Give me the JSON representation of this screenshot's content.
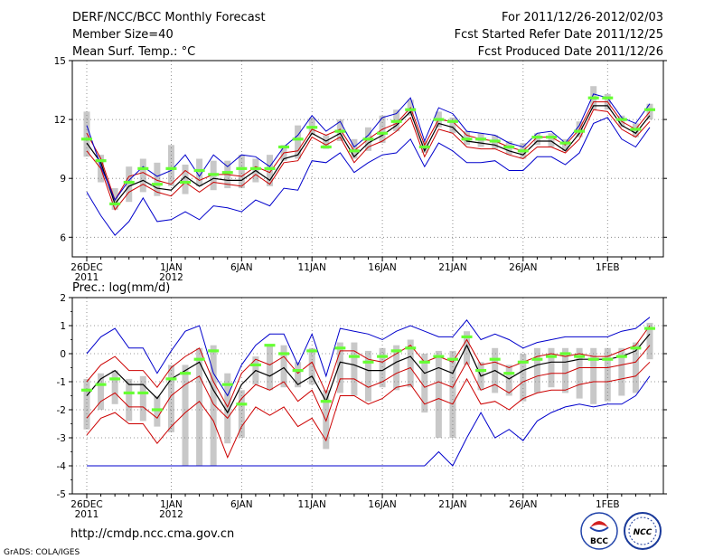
{
  "header": {
    "left": [
      "DERF/NCC/BCC Monthly Forecast",
      "Member Size=40",
      "Mean Surf. Temp.: °C"
    ],
    "right": [
      "For 2011/12/26-2012/02/03",
      "Fcst Started Refer Date 2011/12/25",
      "Fcst Produced Date 2011/12/26"
    ]
  },
  "footer": {
    "url": "http://cmdp.ncc.cma.gov.cn",
    "credit": "GrADS: COLA/IGES",
    "logo_left": "BCC",
    "logo_right": "NCC"
  },
  "colors": {
    "max_min": "#0000cc",
    "mean": "#000000",
    "spread": "#cc0000",
    "obs": "#66ff33",
    "bar": "#c8c8c8",
    "grid": "#777777"
  },
  "xticks": [
    {
      "day": 0,
      "label": "26DEC",
      "sub": "2011"
    },
    {
      "day": 6,
      "label": "1JAN",
      "sub": "2012"
    },
    {
      "day": 11,
      "label": "6JAN",
      "sub": ""
    },
    {
      "day": 16,
      "label": "11JAN",
      "sub": ""
    },
    {
      "day": 21,
      "label": "16JAN",
      "sub": ""
    },
    {
      "day": 26,
      "label": "21JAN",
      "sub": ""
    },
    {
      "day": 31,
      "label": "26JAN",
      "sub": ""
    },
    {
      "day": 37,
      "label": "1FEB",
      "sub": ""
    }
  ],
  "chart_data": [
    {
      "type": "line",
      "title": "Mean Surf. Temp.: °C",
      "ylim": [
        5,
        15
      ],
      "yticks": [
        "6",
        "9",
        "12",
        "15"
      ],
      "x_days": 40,
      "series": [
        {
          "name": "max",
          "values": [
            11.7,
            9.6,
            7.9,
            8.9,
            9.6,
            9.1,
            9.4,
            10.2,
            9.1,
            10.2,
            9.6,
            10.2,
            10.1,
            9.6,
            10.6,
            11.2,
            12.2,
            11.4,
            11.9,
            10.6,
            11.2,
            12.1,
            12.3,
            13.1,
            10.9,
            12.6,
            12.3,
            11.4,
            11.3,
            11.2,
            10.8,
            10.6,
            11.3,
            11.4,
            10.8,
            11.7,
            13.3,
            13.1,
            12.1,
            11.8,
            12.8
          ]
        },
        {
          "name": "min",
          "values": [
            8.3,
            7.1,
            6.1,
            6.8,
            8.0,
            6.8,
            6.9,
            7.3,
            6.9,
            7.6,
            7.5,
            7.3,
            7.9,
            7.6,
            8.5,
            8.4,
            9.9,
            9.8,
            10.3,
            9.3,
            9.8,
            10.2,
            10.3,
            11.0,
            9.6,
            10.8,
            10.4,
            9.8,
            9.8,
            9.9,
            9.4,
            9.4,
            10.1,
            10.1,
            9.7,
            10.3,
            11.8,
            12.1,
            11.0,
            10.6,
            11.6
          ]
        },
        {
          "name": "mean",
          "values": [
            10.8,
            9.8,
            7.7,
            8.6,
            8.9,
            8.5,
            8.4,
            9.1,
            8.6,
            9.0,
            8.9,
            8.9,
            9.4,
            8.9,
            10.0,
            10.2,
            11.3,
            10.9,
            11.3,
            10.1,
            10.8,
            11.2,
            11.7,
            12.4,
            10.4,
            11.8,
            11.6,
            10.9,
            10.8,
            10.7,
            10.4,
            10.2,
            10.9,
            10.9,
            10.4,
            11.3,
            12.7,
            12.7,
            11.7,
            11.3,
            12.2
          ]
        },
        {
          "name": "upper",
          "values": [
            11.3,
            10.0,
            7.9,
            9.1,
            9.3,
            8.9,
            8.7,
            9.4,
            8.9,
            9.2,
            9.2,
            9.1,
            9.6,
            9.3,
            10.3,
            10.4,
            11.5,
            11.2,
            11.5,
            10.4,
            11.0,
            11.5,
            11.8,
            12.6,
            10.7,
            12.0,
            11.9,
            11.2,
            11.0,
            10.9,
            10.6,
            10.4,
            11.1,
            11.1,
            10.7,
            11.5,
            12.9,
            12.9,
            11.9,
            11.5,
            12.4
          ]
        },
        {
          "name": "lower",
          "values": [
            10.4,
            9.5,
            7.4,
            8.3,
            8.7,
            8.3,
            8.1,
            8.8,
            8.3,
            8.8,
            8.7,
            8.6,
            9.2,
            8.7,
            9.8,
            9.9,
            11.1,
            10.7,
            11.1,
            9.8,
            10.6,
            10.9,
            11.4,
            12.1,
            10.1,
            11.5,
            11.3,
            10.6,
            10.5,
            10.5,
            10.2,
            10.0,
            10.6,
            10.6,
            10.3,
            11.0,
            12.5,
            12.4,
            11.5,
            11.1,
            11.9
          ]
        },
        {
          "name": "obs_mean",
          "values": [
            11.0,
            9.9,
            7.7,
            8.8,
            9.5,
            8.7,
            9.5,
            8.8,
            9.4,
            9.2,
            9.3,
            9.5,
            9.5,
            9.5,
            10.6,
            11.0,
            11.6,
            10.6,
            11.4,
            10.4,
            11.0,
            11.3,
            11.9,
            12.5,
            10.6,
            12.0,
            11.9,
            11.0,
            11.0,
            10.9,
            10.6,
            10.4,
            11.1,
            11.1,
            10.8,
            11.4,
            13.1,
            13.1,
            12.0,
            11.5,
            12.5
          ]
        },
        {
          "name": "bar_high",
          "values": [
            12.4,
            10.2,
            8.5,
            9.6,
            10.0,
            9.8,
            10.7,
            9.7,
            10.0,
            9.9,
            9.9,
            10.2,
            10.0,
            10.2,
            10.7,
            11.7,
            12.1,
            11.2,
            12.0,
            11.0,
            11.6,
            12.2,
            12.5,
            13.0,
            10.9,
            12.4,
            12.1,
            11.4,
            11.3,
            11.2,
            10.9,
            10.8,
            11.3,
            11.3,
            11.0,
            11.9,
            13.7,
            13.3,
            12.2,
            11.8,
            12.8
          ]
        },
        {
          "name": "bar_low",
          "values": [
            10.1,
            8.8,
            7.4,
            7.8,
            8.3,
            8.1,
            8.6,
            8.2,
            8.6,
            8.4,
            8.5,
            8.5,
            8.8,
            8.6,
            9.9,
            10.0,
            11.2,
            10.5,
            10.9,
            10.0,
            10.4,
            10.8,
            11.4,
            12.2,
            10.3,
            11.6,
            11.3,
            10.7,
            10.6,
            10.5,
            10.2,
            10.0,
            10.7,
            10.6,
            10.4,
            11.1,
            12.5,
            12.5,
            11.6,
            11.1,
            12.0
          ]
        }
      ]
    },
    {
      "type": "line",
      "title": "Prec.: log(mm/d)",
      "ylim": [
        -5,
        2
      ],
      "yticks": [
        "-5",
        "-4",
        "-3",
        "-2",
        "-1",
        "0",
        "1",
        "2"
      ],
      "x_days": 40,
      "series": [
        {
          "name": "max",
          "values": [
            0.0,
            0.6,
            0.9,
            0.2,
            0.2,
            -0.7,
            0.1,
            0.8,
            1.0,
            -0.7,
            -1.5,
            -0.4,
            0.3,
            0.7,
            0.7,
            -0.4,
            0.7,
            -0.8,
            0.9,
            0.8,
            0.7,
            0.5,
            0.8,
            1.0,
            0.8,
            0.6,
            0.6,
            1.2,
            0.5,
            0.7,
            0.5,
            0.2,
            0.4,
            0.5,
            0.6,
            0.6,
            0.6,
            0.6,
            0.8,
            0.9,
            1.3
          ]
        },
        {
          "name": "min",
          "values": [
            -4.0,
            -4.0,
            -4.0,
            -4.0,
            -4.0,
            -4.0,
            -4.0,
            -4.0,
            -4.0,
            -4.0,
            -4.0,
            -4.0,
            -4.0,
            -4.0,
            -4.0,
            -4.0,
            -4.0,
            -4.0,
            -4.0,
            -4.0,
            -4.0,
            -4.0,
            -4.0,
            -4.0,
            -4.0,
            -3.5,
            -4.0,
            -3.0,
            -2.1,
            -3.0,
            -2.7,
            -3.1,
            -2.4,
            -2.1,
            -1.9,
            -1.8,
            -1.9,
            -1.8,
            -1.8,
            -1.5,
            -0.8
          ]
        },
        {
          "name": "upper",
          "values": [
            -1.0,
            -0.4,
            -0.1,
            -0.6,
            -0.6,
            -1.2,
            -0.5,
            -0.1,
            0.2,
            -1.0,
            -1.9,
            -0.7,
            -0.2,
            -0.4,
            -0.1,
            -0.7,
            -0.3,
            -1.4,
            0.1,
            0.1,
            -0.2,
            -0.3,
            0.0,
            0.3,
            -0.3,
            -0.1,
            -0.3,
            0.5,
            -0.4,
            -0.3,
            -0.5,
            -0.3,
            -0.1,
            0.0,
            -0.1,
            0.0,
            -0.1,
            -0.1,
            0.1,
            0.3,
            1.0
          ]
        },
        {
          "name": "mean",
          "values": [
            -1.5,
            -0.9,
            -0.6,
            -1.1,
            -1.1,
            -1.6,
            -0.9,
            -0.6,
            -0.3,
            -1.3,
            -2.1,
            -1.1,
            -0.6,
            -0.8,
            -0.5,
            -1.1,
            -0.8,
            -1.7,
            -0.3,
            -0.4,
            -0.6,
            -0.6,
            -0.3,
            -0.1,
            -0.7,
            -0.5,
            -0.7,
            0.3,
            -0.8,
            -0.6,
            -0.9,
            -0.6,
            -0.4,
            -0.3,
            -0.3,
            -0.2,
            -0.2,
            -0.2,
            -0.1,
            0.1,
            0.7
          ]
        },
        {
          "name": "lower",
          "values": [
            -2.3,
            -1.7,
            -1.4,
            -1.9,
            -1.9,
            -2.3,
            -1.5,
            -1.1,
            -0.8,
            -1.8,
            -2.3,
            -1.6,
            -1.1,
            -1.3,
            -1.0,
            -1.7,
            -1.3,
            -2.4,
            -0.9,
            -0.9,
            -1.2,
            -1.0,
            -0.7,
            -0.5,
            -1.2,
            -1.0,
            -1.2,
            -0.3,
            -1.3,
            -1.1,
            -1.4,
            -1.0,
            -0.8,
            -0.7,
            -0.7,
            -0.5,
            -0.5,
            -0.5,
            -0.4,
            -0.3,
            0.3
          ]
        },
        {
          "name": "spread_low",
          "values": [
            -2.9,
            -2.3,
            -2.1,
            -2.5,
            -2.5,
            -3.2,
            -2.6,
            -2.1,
            -1.7,
            -2.4,
            -3.7,
            -2.6,
            -1.9,
            -2.2,
            -1.9,
            -2.6,
            -2.3,
            -3.1,
            -1.5,
            -1.5,
            -1.8,
            -1.6,
            -1.2,
            -1.1,
            -1.8,
            -1.6,
            -1.8,
            -0.9,
            -1.8,
            -1.7,
            -2.0,
            -1.6,
            -1.4,
            -1.3,
            -1.3,
            -1.1,
            -1.0,
            -1.0,
            -0.9,
            -0.8,
            -0.3
          ]
        },
        {
          "name": "obs_mean",
          "values": [
            -1.3,
            -1.1,
            -0.9,
            -1.4,
            -1.4,
            -2.0,
            -0.9,
            -0.7,
            -0.2,
            0.1,
            -1.1,
            -1.8,
            -0.4,
            0.3,
            0.0,
            -0.6,
            0.1,
            -1.7,
            0.2,
            -0.1,
            -0.3,
            -0.1,
            0.1,
            0.2,
            -0.3,
            -0.1,
            -0.2,
            0.6,
            -0.6,
            -0.2,
            -0.7,
            -0.3,
            -0.2,
            -0.1,
            0.0,
            -0.1,
            -0.2,
            -0.2,
            -0.1,
            0.2,
            0.9
          ]
        },
        {
          "name": "bar_high",
          "values": [
            -0.9,
            -0.7,
            -0.6,
            -0.9,
            -0.8,
            -1.5,
            -0.4,
            -0.4,
            0.2,
            0.3,
            -0.7,
            -1.3,
            -0.1,
            0.3,
            0.3,
            -0.3,
            0.2,
            -1.3,
            0.4,
            0.4,
            0.1,
            0.2,
            0.3,
            0.5,
            0.0,
            0.1,
            0.1,
            0.8,
            -0.3,
            0.2,
            -0.4,
            0.0,
            0.2,
            0.2,
            0.2,
            0.2,
            0.2,
            0.2,
            0.2,
            0.4,
            1.1
          ]
        },
        {
          "name": "bar_low",
          "values": [
            -2.7,
            -2.0,
            -1.8,
            -2.4,
            -2.4,
            -2.6,
            -2.8,
            -4.0,
            -4.0,
            -4.0,
            -3.2,
            -3.0,
            -1.1,
            -1.3,
            -1.2,
            -1.2,
            -1.1,
            -3.4,
            -1.4,
            -1.5,
            -1.7,
            -1.2,
            -1.3,
            -1.2,
            -2.1,
            -3.0,
            -3.0,
            -0.4,
            -1.3,
            -1.4,
            -1.5,
            -1.7,
            -1.4,
            -1.2,
            -1.4,
            -1.6,
            -1.8,
            -1.7,
            -1.5,
            -1.4,
            -0.2
          ]
        }
      ]
    }
  ]
}
